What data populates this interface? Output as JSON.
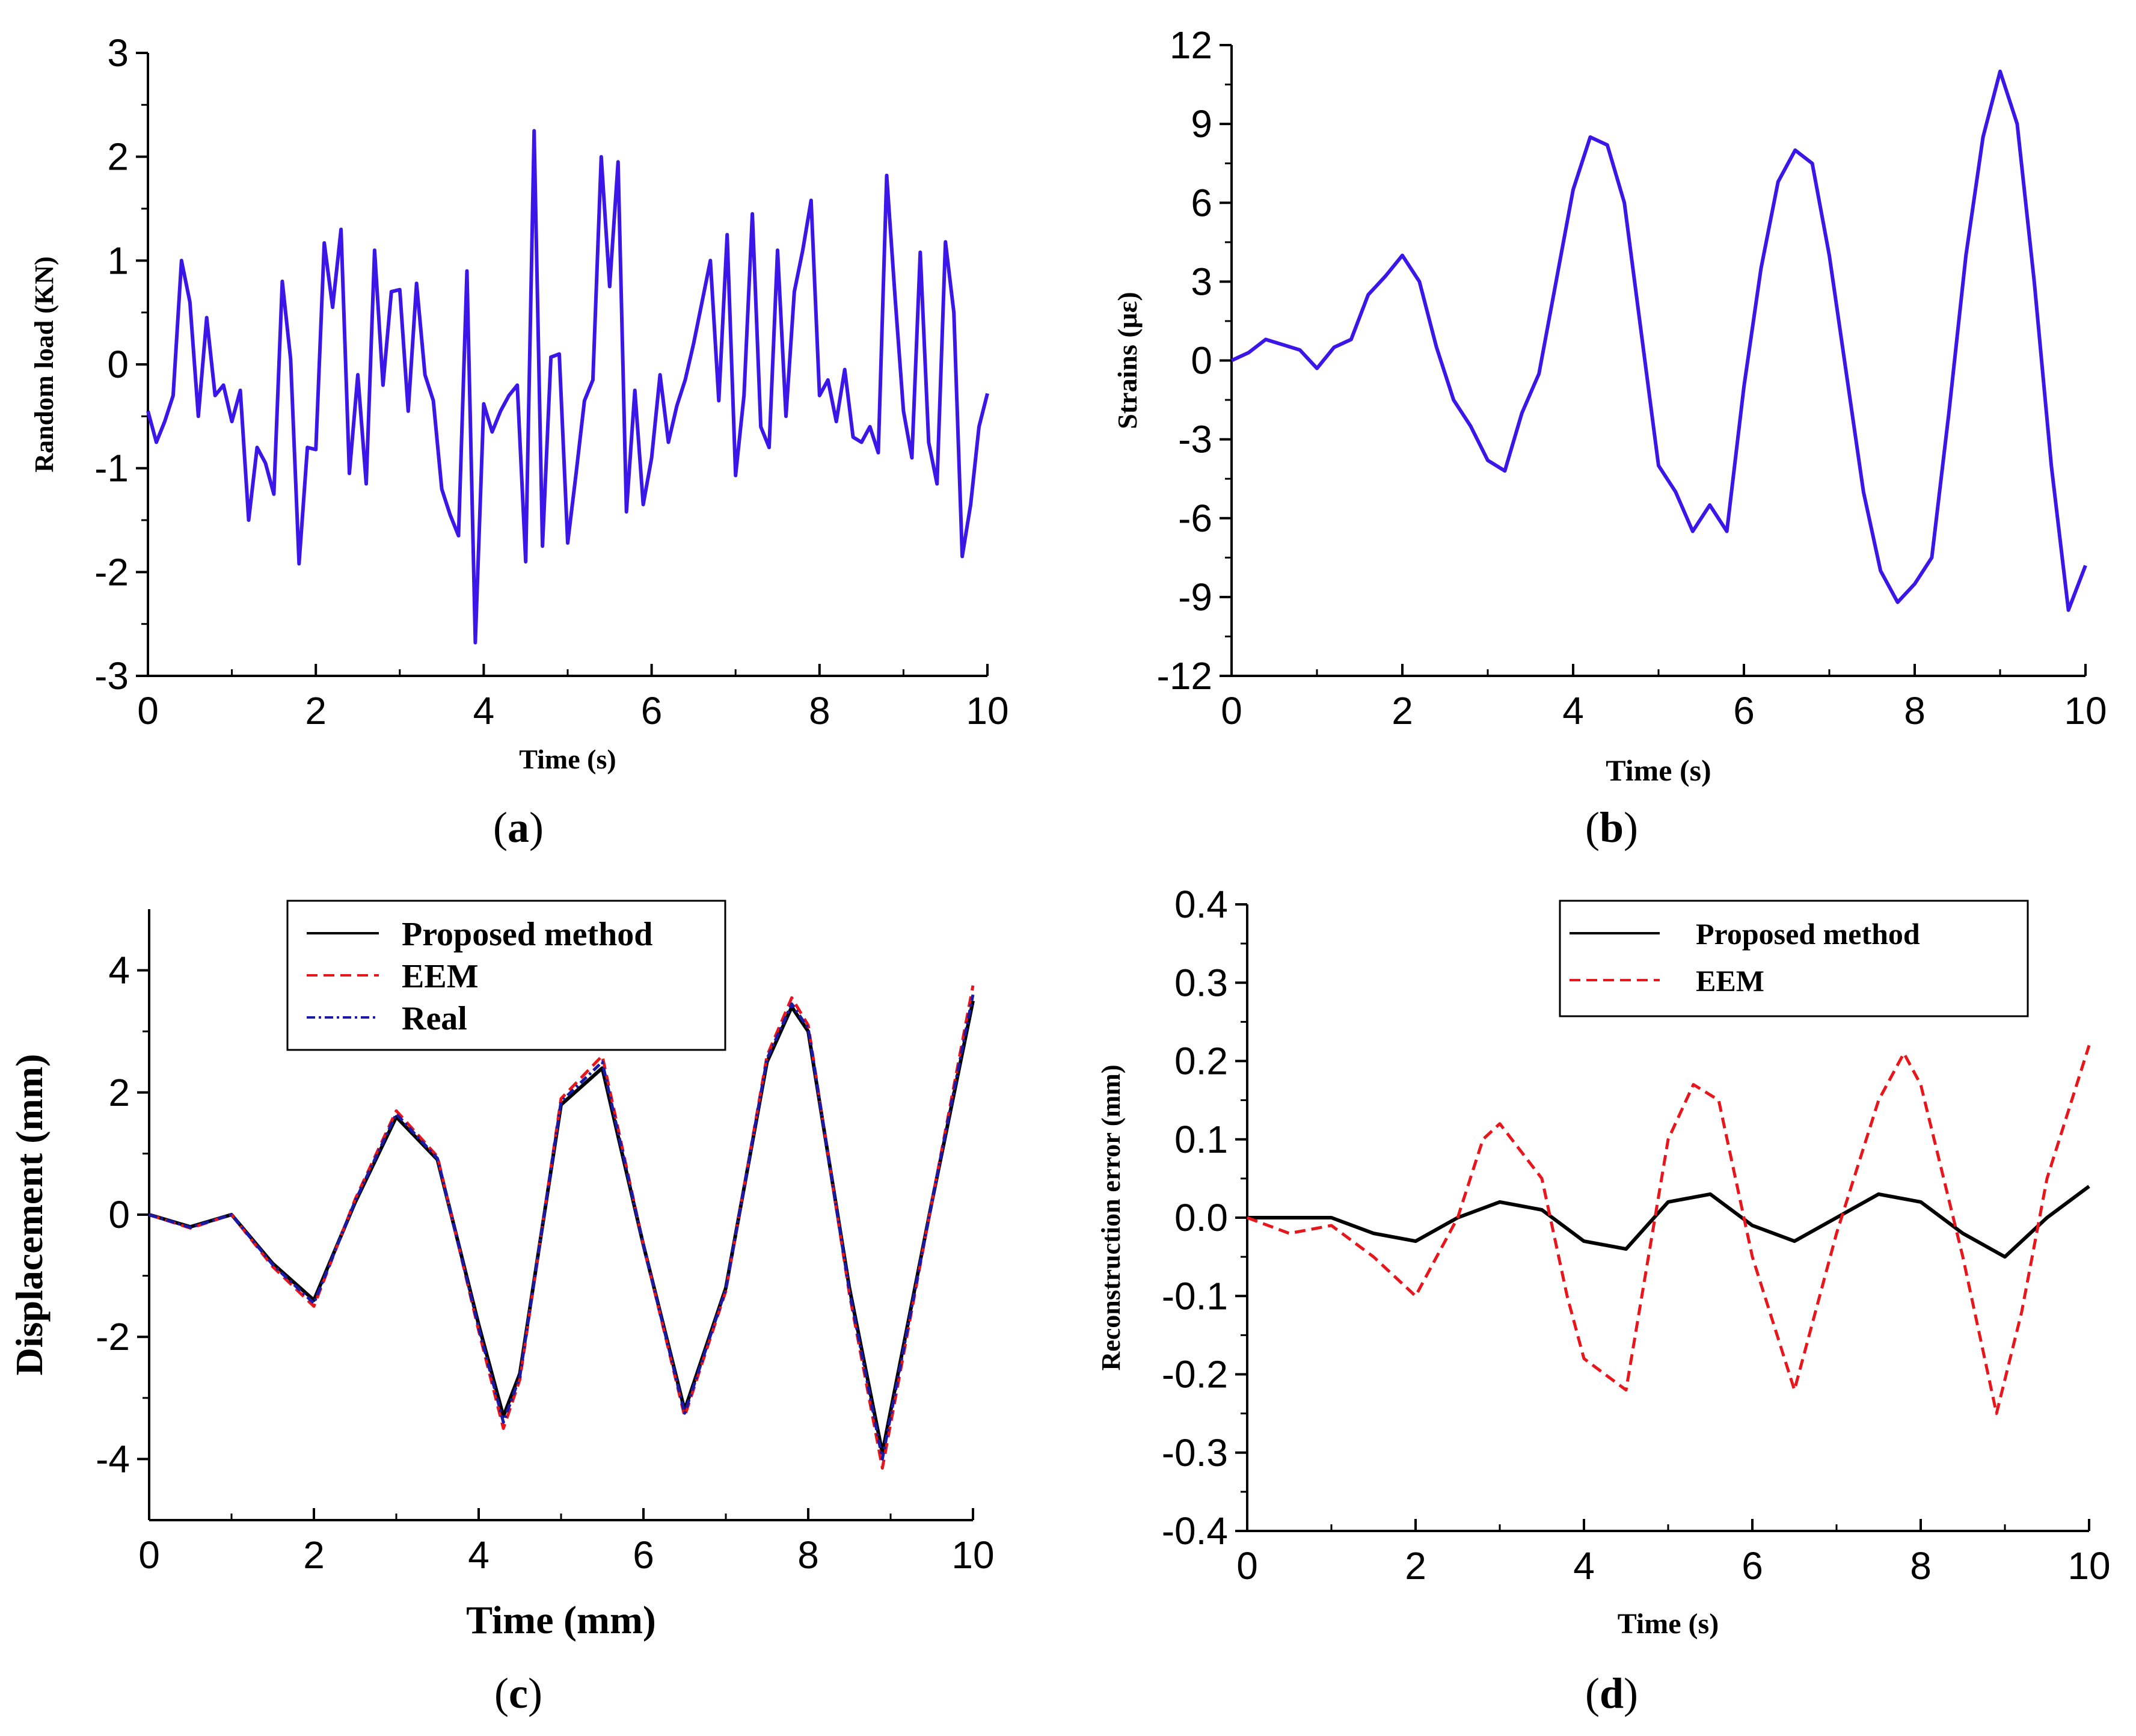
{
  "chart_data": [
    {
      "id": "a",
      "type": "line",
      "caption_letter": "a",
      "xlabel": "Time (s)",
      "ylabel": "Random load (KN)",
      "xlim": [
        0,
        10
      ],
      "ylim": [
        -3,
        3
      ],
      "xticks": [
        0,
        2,
        4,
        6,
        8,
        10
      ],
      "xtick_labels": [
        "0",
        "2",
        "4",
        "6",
        "8",
        "10"
      ],
      "yticks": [
        -3,
        -2,
        -1,
        0,
        1,
        2,
        3
      ],
      "ytick_labels": [
        "-3",
        "-2",
        "-1",
        "0",
        "1",
        "2",
        "3"
      ],
      "series": [
        {
          "name": "Random load",
          "color": "#3a17e8",
          "x": [
            0.0,
            0.1,
            0.2,
            0.3,
            0.4,
            0.5,
            0.6,
            0.7,
            0.8,
            0.9,
            1.0,
            1.1,
            1.2,
            1.3,
            1.4,
            1.5,
            1.6,
            1.7,
            1.8,
            1.9,
            2.0,
            2.1,
            2.2,
            2.3,
            2.4,
            2.5,
            2.6,
            2.7,
            2.8,
            2.9,
            3.0,
            3.1,
            3.2,
            3.3,
            3.4,
            3.5,
            3.6,
            3.7,
            3.8,
            3.9,
            4.0,
            4.1,
            4.2,
            4.3,
            4.4,
            4.5,
            4.6,
            4.7,
            4.8,
            4.9,
            5.0,
            5.1,
            5.2,
            5.3,
            5.4,
            5.5,
            5.6,
            5.7,
            5.8,
            5.9,
            6.0,
            6.1,
            6.2,
            6.3,
            6.4,
            6.5,
            6.6,
            6.7,
            6.8,
            6.9,
            7.0,
            7.1,
            7.2,
            7.3,
            7.4,
            7.5,
            7.6,
            7.7,
            7.8,
            7.9,
            8.0,
            8.1,
            8.2,
            8.3,
            8.4,
            8.5,
            8.6,
            8.7,
            8.8,
            8.9,
            9.0,
            9.1,
            9.2,
            9.3,
            9.4,
            9.5,
            9.6,
            9.7,
            9.8,
            9.9,
            10.0
          ],
          "y": [
            -0.45,
            -0.75,
            -0.55,
            -0.3,
            1.0,
            0.6,
            -0.5,
            0.45,
            -0.3,
            -0.2,
            -0.55,
            -0.25,
            -1.5,
            -0.8,
            -0.95,
            -1.25,
            0.8,
            0.05,
            -1.92,
            -0.8,
            -0.82,
            1.17,
            0.55,
            1.3,
            -1.05,
            -0.1,
            -1.15,
            1.1,
            -0.2,
            0.7,
            0.72,
            -0.45,
            0.78,
            -0.1,
            -0.35,
            -1.2,
            -1.45,
            -1.65,
            0.9,
            -2.68,
            -0.38,
            -0.65,
            -0.45,
            -0.3,
            -0.2,
            -1.9,
            2.25,
            -1.75,
            0.07,
            0.1,
            -1.72,
            -1.05,
            -0.35,
            -0.15,
            2.0,
            0.75,
            1.95,
            -1.42,
            -0.25,
            -1.35,
            -0.9,
            -0.1,
            -0.75,
            -0.4,
            -0.15,
            0.2,
            0.6,
            1.0,
            -0.35,
            1.25,
            -1.07,
            -0.3,
            1.45,
            -0.6,
            -0.8,
            1.1,
            -0.5,
            0.7,
            1.1,
            1.58,
            -0.3,
            -0.15,
            -0.55,
            -0.05,
            -0.7,
            -0.75,
            -0.6,
            -0.85,
            1.82,
            0.65,
            -0.45,
            -0.9,
            1.08,
            -0.75,
            -1.15,
            1.18,
            0.5,
            -1.85,
            -1.35,
            -0.6,
            -0.28
          ]
        }
      ]
    },
    {
      "id": "b",
      "type": "line",
      "caption_letter": "b",
      "xlabel": "Time (s)",
      "ylabel": "Strains (με)",
      "xlim": [
        0,
        10
      ],
      "ylim": [
        -12,
        12
      ],
      "xticks": [
        0,
        2,
        4,
        6,
        8,
        10
      ],
      "xtick_labels": [
        "0",
        "2",
        "4",
        "6",
        "8",
        "10"
      ],
      "yticks": [
        -12,
        -9,
        -6,
        -3,
        0,
        3,
        6,
        9,
        12
      ],
      "ytick_labels": [
        "-12",
        "-9",
        "-6",
        "-3",
        "0",
        "3",
        "6",
        "9",
        "12"
      ],
      "series": [
        {
          "name": "Strains",
          "color": "#3a17e8",
          "x": [
            0.0,
            0.2,
            0.4,
            0.6,
            0.8,
            1.0,
            1.2,
            1.4,
            1.6,
            1.8,
            2.0,
            2.2,
            2.4,
            2.6,
            2.8,
            3.0,
            3.2,
            3.4,
            3.6,
            3.8,
            4.0,
            4.2,
            4.4,
            4.6,
            4.8,
            5.0,
            5.2,
            5.4,
            5.6,
            5.8,
            6.0,
            6.2,
            6.4,
            6.6,
            6.8,
            7.0,
            7.2,
            7.4,
            7.6,
            7.8,
            8.0,
            8.2,
            8.4,
            8.6,
            8.8,
            9.0,
            9.2,
            9.4,
            9.6,
            9.8,
            10.0
          ],
          "y": [
            0.0,
            0.3,
            0.8,
            0.6,
            0.4,
            -0.3,
            0.5,
            0.8,
            2.5,
            3.2,
            4.0,
            3.0,
            0.5,
            -1.5,
            -2.5,
            -3.8,
            -4.2,
            -2.0,
            -0.5,
            3.0,
            6.5,
            8.5,
            8.2,
            6.0,
            1.0,
            -4.0,
            -5.0,
            -6.5,
            -5.5,
            -6.5,
            -1.0,
            3.5,
            6.8,
            8.0,
            7.5,
            4.0,
            -0.5,
            -5.0,
            -8.0,
            -9.2,
            -8.5,
            -7.5,
            -2.0,
            4.0,
            8.5,
            11.0,
            9.0,
            3.0,
            -4.0,
            -9.5,
            -7.8
          ]
        }
      ]
    },
    {
      "id": "c",
      "type": "line",
      "caption_letter": "c",
      "xlabel": "Time (mm)",
      "ylabel": "Displacement (mm)",
      "xlim": [
        0,
        10
      ],
      "ylim": [
        -5,
        5
      ],
      "xticks": [
        0,
        2,
        4,
        6,
        8,
        10
      ],
      "xtick_labels": [
        "0",
        "2",
        "4",
        "6",
        "8",
        "10"
      ],
      "yticks": [
        -4,
        -2,
        0,
        2,
        4
      ],
      "ytick_labels": [
        "-4",
        "-2",
        "0",
        "2",
        "4"
      ],
      "legend_position": "top-center",
      "series": [
        {
          "name": "Proposed method",
          "color": "#000000",
          "style": "solid",
          "x": [
            0.0,
            0.5,
            1.0,
            1.5,
            2.0,
            2.5,
            3.0,
            3.5,
            4.0,
            4.3,
            4.5,
            5.0,
            5.5,
            6.0,
            6.5,
            7.0,
            7.5,
            7.8,
            8.0,
            8.5,
            8.9,
            9.5,
            10.0
          ],
          "y": [
            0.0,
            -0.2,
            0.0,
            -0.8,
            -1.4,
            0.2,
            1.6,
            0.9,
            -1.8,
            -3.3,
            -2.6,
            1.8,
            2.4,
            -0.5,
            -3.2,
            -1.2,
            2.5,
            3.4,
            3.0,
            -1.2,
            -3.9,
            0.2,
            3.5
          ]
        },
        {
          "name": "EEM",
          "color": "#e8151b",
          "style": "dashed",
          "x": [
            0.0,
            0.5,
            1.0,
            1.5,
            2.0,
            2.5,
            3.0,
            3.5,
            4.0,
            4.3,
            4.5,
            5.0,
            5.5,
            6.0,
            6.5,
            7.0,
            7.5,
            7.8,
            8.0,
            8.5,
            8.9,
            9.5,
            10.0
          ],
          "y": [
            0.0,
            -0.22,
            0.0,
            -0.85,
            -1.5,
            0.25,
            1.7,
            0.95,
            -1.9,
            -3.5,
            -2.7,
            1.9,
            2.6,
            -0.5,
            -3.3,
            -1.25,
            2.6,
            3.55,
            3.1,
            -1.3,
            -4.15,
            0.2,
            3.75
          ]
        },
        {
          "name": "Real",
          "color": "#1a1aa8",
          "style": "dash-dot",
          "x": [
            0.0,
            0.5,
            1.0,
            1.5,
            2.0,
            2.5,
            3.0,
            3.5,
            4.0,
            4.3,
            4.5,
            5.0,
            5.5,
            6.0,
            6.5,
            7.0,
            7.5,
            7.8,
            8.0,
            8.5,
            8.9,
            9.5,
            10.0
          ],
          "y": [
            0.0,
            -0.21,
            0.0,
            -0.82,
            -1.45,
            0.22,
            1.65,
            0.92,
            -1.85,
            -3.4,
            -2.65,
            1.85,
            2.5,
            -0.5,
            -3.25,
            -1.22,
            2.55,
            3.45,
            3.05,
            -1.25,
            -4.0,
            0.2,
            3.6
          ]
        }
      ]
    },
    {
      "id": "d",
      "type": "line",
      "caption_letter": "d",
      "xlabel": "Time (s)",
      "ylabel": "Reconstruction error (mm)",
      "xlim": [
        0,
        10
      ],
      "ylim": [
        -0.4,
        0.4
      ],
      "xticks": [
        0,
        2,
        4,
        6,
        8,
        10
      ],
      "xtick_labels": [
        "0",
        "2",
        "4",
        "6",
        "8",
        "10"
      ],
      "yticks": [
        -0.4,
        -0.3,
        -0.2,
        -0.1,
        0.0,
        0.1,
        0.2,
        0.3,
        0.4
      ],
      "ytick_labels": [
        "-0.4",
        "-0.3",
        "-0.2",
        "-0.1",
        "0.0",
        "0.1",
        "0.2",
        "0.3",
        "0.4"
      ],
      "legend_position": "top-right",
      "series": [
        {
          "name": "Proposed method",
          "color": "#000000",
          "style": "solid",
          "x": [
            0.0,
            0.5,
            1.0,
            1.5,
            2.0,
            2.5,
            3.0,
            3.5,
            4.0,
            4.5,
            5.0,
            5.5,
            6.0,
            6.5,
            7.0,
            7.5,
            8.0,
            8.5,
            9.0,
            9.5,
            10.0
          ],
          "y": [
            0.0,
            0.0,
            0.0,
            -0.02,
            -0.03,
            0.0,
            0.02,
            0.01,
            -0.03,
            -0.04,
            0.02,
            0.03,
            -0.01,
            -0.03,
            0.0,
            0.03,
            0.02,
            -0.02,
            -0.05,
            0.0,
            0.04
          ]
        },
        {
          "name": "EEM",
          "color": "#e8151b",
          "style": "dashed",
          "x": [
            0.0,
            0.5,
            1.0,
            1.5,
            2.0,
            2.5,
            2.8,
            3.0,
            3.5,
            3.8,
            4.0,
            4.5,
            5.0,
            5.3,
            5.6,
            6.0,
            6.5,
            7.0,
            7.5,
            7.8,
            8.0,
            8.5,
            8.9,
            9.2,
            9.5,
            10.0
          ],
          "y": [
            0.0,
            -0.02,
            -0.01,
            -0.05,
            -0.1,
            0.0,
            0.1,
            0.12,
            0.05,
            -0.1,
            -0.18,
            -0.22,
            0.1,
            0.17,
            0.15,
            -0.05,
            -0.22,
            -0.02,
            0.15,
            0.21,
            0.17,
            -0.05,
            -0.25,
            -0.12,
            0.05,
            0.22
          ]
        }
      ]
    }
  ]
}
